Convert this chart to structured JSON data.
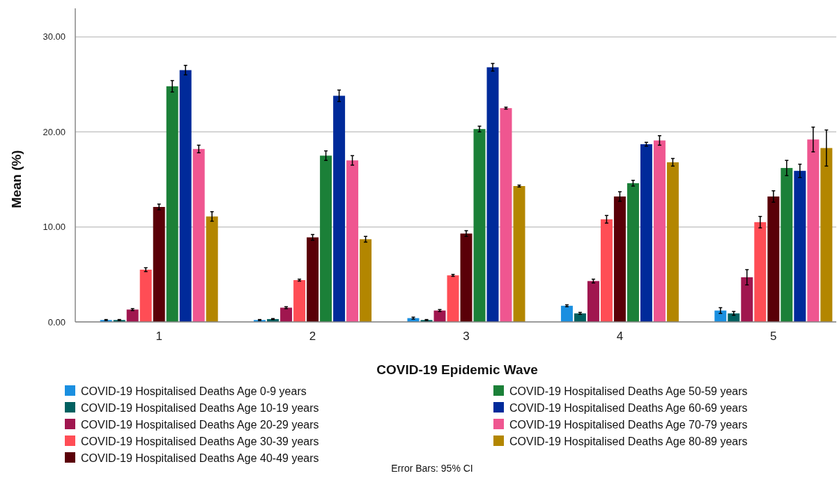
{
  "chart_data": {
    "type": "bar",
    "xlabel": "COVID-19 Epidemic Wave",
    "ylabel": "Mean (%)",
    "categories": [
      "1",
      "2",
      "3",
      "4",
      "5"
    ],
    "ylim": [
      0,
      33
    ],
    "yticks": [
      {
        "value": 0,
        "label": "0.00"
      },
      {
        "value": 10,
        "label": "10.00"
      },
      {
        "value": 20,
        "label": "20.00"
      },
      {
        "value": 30,
        "label": "30.00"
      }
    ],
    "grid": "y",
    "legend": "bottom",
    "annotations": [
      "Error Bars: 95% CI"
    ],
    "series": [
      {
        "name": "COVID-19 Hospitalised Deaths Age 0-9 years",
        "color": "#1a8fe0",
        "values": [
          0.2,
          0.2,
          0.4,
          1.7,
          1.2
        ],
        "errors": [
          0.05,
          0.05,
          0.1,
          0.1,
          0.3
        ]
      },
      {
        "name": "COVID-19 Hospitalised Deaths Age 10-19 years",
        "color": "#006060",
        "values": [
          0.2,
          0.3,
          0.2,
          0.9,
          0.9
        ],
        "errors": [
          0.05,
          0.05,
          0.05,
          0.1,
          0.2
        ]
      },
      {
        "name": "COVID-19 Hospitalised Deaths Age 20-29 years",
        "color": "#a0164f",
        "values": [
          1.3,
          1.5,
          1.2,
          4.3,
          4.7
        ],
        "errors": [
          0.1,
          0.1,
          0.1,
          0.2,
          0.8
        ]
      },
      {
        "name": "COVID-19 Hospitalised Deaths Age 30-39 years",
        "color": "#ff4d55",
        "values": [
          5.5,
          4.4,
          4.9,
          10.8,
          10.5
        ],
        "errors": [
          0.2,
          0.1,
          0.1,
          0.4,
          0.6
        ]
      },
      {
        "name": "COVID-19 Hospitalised Deaths Age 40-49 years",
        "color": "#5a0008",
        "values": [
          12.1,
          8.9,
          9.3,
          13.2,
          13.2
        ],
        "errors": [
          0.3,
          0.3,
          0.3,
          0.5,
          0.6
        ]
      },
      {
        "name": "COVID-19 Hospitalised Deaths Age 50-59 years",
        "color": "#1b8038",
        "values": [
          24.8,
          17.5,
          20.3,
          14.6,
          16.2
        ],
        "errors": [
          0.6,
          0.5,
          0.3,
          0.3,
          0.8
        ]
      },
      {
        "name": "COVID-19 Hospitalised Deaths Age 60-69 years",
        "color": "#002a9a",
        "values": [
          26.5,
          23.8,
          26.8,
          18.7,
          15.9
        ],
        "errors": [
          0.5,
          0.6,
          0.4,
          0.2,
          0.7
        ]
      },
      {
        "name": "COVID-19 Hospitalised Deaths Age 70-79 years",
        "color": "#ef5690",
        "values": [
          18.2,
          17.0,
          22.5,
          19.1,
          19.2
        ],
        "errors": [
          0.4,
          0.5,
          0.1,
          0.5,
          1.3
        ]
      },
      {
        "name": "COVID-19 Hospitalised Deaths Age 80-89 years",
        "color": "#b38600",
        "values": [
          11.1,
          8.7,
          14.3,
          16.8,
          18.3
        ],
        "errors": [
          0.5,
          0.3,
          0.1,
          0.4,
          1.9
        ]
      }
    ]
  }
}
